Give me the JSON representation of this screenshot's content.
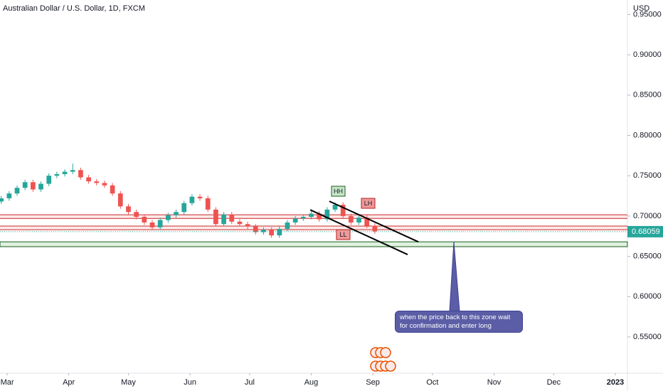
{
  "chart_data": {
    "type": "candlestick",
    "title": "Australian Dollar / U.S. Dollar, 1D, FXCM",
    "currency": "USD",
    "x": [
      -3,
      1,
      5,
      9,
      13,
      17,
      21,
      25,
      29,
      33,
      37,
      41,
      45,
      49,
      53,
      57,
      61,
      65,
      69,
      73,
      77,
      81,
      85,
      89,
      93,
      97,
      101,
      105,
      109,
      113,
      117,
      121,
      125,
      129,
      133,
      137,
      141,
      145,
      149,
      153,
      157,
      161,
      165,
      169,
      173,
      177,
      181,
      185
    ],
    "open": [
      0.718,
      0.722,
      0.728,
      0.735,
      0.742,
      0.733,
      0.74,
      0.75,
      0.752,
      0.755,
      0.757,
      0.748,
      0.743,
      0.741,
      0.738,
      0.728,
      0.712,
      0.705,
      0.699,
      0.692,
      0.686,
      0.695,
      0.701,
      0.705,
      0.716,
      0.724,
      0.722,
      0.708,
      0.69,
      0.702,
      0.693,
      0.69,
      0.687,
      0.68,
      0.683,
      0.676,
      0.684,
      0.692,
      0.697,
      0.699,
      0.703,
      0.696,
      0.708,
      0.714,
      0.7,
      0.692,
      0.698,
      0.688
    ],
    "high": [
      0.725,
      0.731,
      0.738,
      0.745,
      0.745,
      0.743,
      0.753,
      0.755,
      0.758,
      0.765,
      0.76,
      0.751,
      0.746,
      0.744,
      0.741,
      0.731,
      0.715,
      0.708,
      0.702,
      0.695,
      0.698,
      0.704,
      0.708,
      0.719,
      0.727,
      0.727,
      0.725,
      0.711,
      0.705,
      0.705,
      0.696,
      0.693,
      0.69,
      0.686,
      0.686,
      0.687,
      0.695,
      0.7,
      0.702,
      0.706,
      0.706,
      0.711,
      0.717,
      0.717,
      0.703,
      0.701,
      0.701,
      0.691
    ],
    "low": [
      0.715,
      0.719,
      0.725,
      0.732,
      0.73,
      0.73,
      0.737,
      0.747,
      0.749,
      0.752,
      0.745,
      0.74,
      0.738,
      0.735,
      0.725,
      0.709,
      0.702,
      0.696,
      0.689,
      0.683,
      0.683,
      0.692,
      0.698,
      0.702,
      0.713,
      0.719,
      0.705,
      0.687,
      0.687,
      0.69,
      0.687,
      0.684,
      0.677,
      0.677,
      0.673,
      0.673,
      0.681,
      0.689,
      0.694,
      0.696,
      0.693,
      0.693,
      0.705,
      0.697,
      0.689,
      0.689,
      0.685,
      0.678
    ],
    "close": [
      0.722,
      0.728,
      0.735,
      0.742,
      0.733,
      0.74,
      0.75,
      0.752,
      0.755,
      0.757,
      0.748,
      0.743,
      0.741,
      0.738,
      0.728,
      0.712,
      0.705,
      0.699,
      0.692,
      0.686,
      0.695,
      0.701,
      0.705,
      0.716,
      0.724,
      0.722,
      0.708,
      0.69,
      0.702,
      0.693,
      0.69,
      0.687,
      0.68,
      0.683,
      0.676,
      0.684,
      0.692,
      0.697,
      0.699,
      0.703,
      0.696,
      0.708,
      0.714,
      0.7,
      0.692,
      0.698,
      0.688,
      0.681
    ],
    "up_color": "#26a69a",
    "down_color": "#ef5350",
    "xlim": [
      -3.6,
      312.1
    ],
    "xticks": [
      {
        "value": 0,
        "label": "Mar"
      },
      {
        "value": 31,
        "label": "Apr"
      },
      {
        "value": 61,
        "label": "May"
      },
      {
        "value": 92,
        "label": "Jun"
      },
      {
        "value": 122,
        "label": "Jul"
      },
      {
        "value": 153,
        "label": "Aug"
      },
      {
        "value": 184,
        "label": "Sep"
      },
      {
        "value": 214,
        "label": "Oct"
      },
      {
        "value": 245,
        "label": "Nov"
      },
      {
        "value": 275,
        "label": "Dec"
      },
      {
        "value": 306,
        "label": "2023"
      }
    ],
    "ylim": [
      0.505,
      0.968
    ],
    "yticks": [
      {
        "value": 0.55,
        "label": "0.55000"
      },
      {
        "value": 0.6,
        "label": "0.60000"
      },
      {
        "value": 0.65,
        "label": "0.65000"
      },
      {
        "value": 0.7,
        "label": "0.70000"
      },
      {
        "value": 0.75,
        "label": "0.75000"
      },
      {
        "value": 0.8,
        "label": "0.80000"
      },
      {
        "value": 0.85,
        "label": "0.85000"
      },
      {
        "value": 0.9,
        "label": "0.90000"
      },
      {
        "value": 0.95,
        "label": "0.95000"
      }
    ],
    "last_price": {
      "value": 0.68059,
      "label": "0.68059"
    },
    "resistance_lines": [
      0.7015,
      0.697,
      0.6875,
      0.683
    ],
    "support_zone": [
      0.662,
      0.668
    ],
    "trend_lines": [
      {
        "x": [
          162.1,
          206.9
        ],
        "y": [
          0.7183,
          0.668
        ]
      },
      {
        "x": [
          152.5,
          201.5
        ],
        "y": [
          0.7077,
          0.6522
        ]
      }
    ],
    "labels": [
      "HH",
      "LH",
      "LL"
    ],
    "annotation": "when the price back to this zone wait for confirmation and enter long"
  }
}
